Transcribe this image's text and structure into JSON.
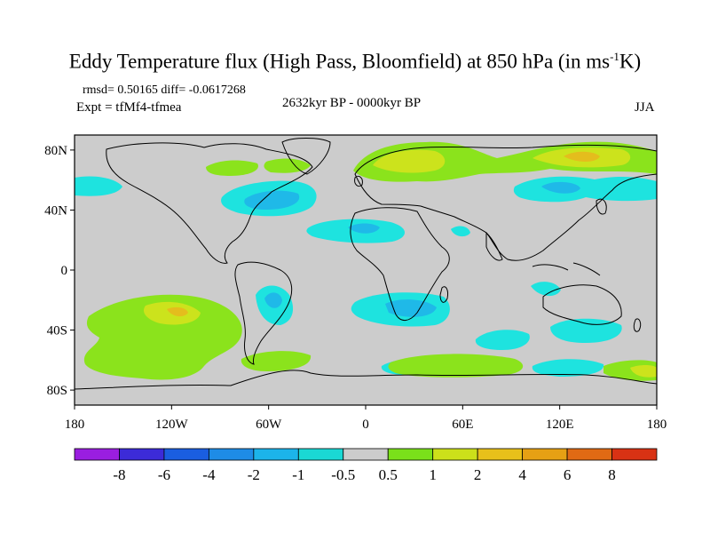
{
  "title": {
    "main": "Eddy Temperature flux (High Pass, Bloomfield) at 850 hPa (in ms",
    "sup": "-1",
    "end": "K)"
  },
  "header": {
    "stats": "rmsd= 0.50165 diff= -0.0617268",
    "experiment": "Expt = tfMf4-tfmea",
    "period": "2632kyr BP - 0000kyr BP",
    "season": "JJA"
  },
  "axes": {
    "lat_labels": [
      "80N",
      "40N",
      "0",
      "40S",
      "80S"
    ],
    "lat_values": [
      80,
      40,
      0,
      -40,
      -80
    ],
    "lon_labels": [
      "180",
      "120W",
      "60W",
      "0",
      "60E",
      "120E",
      "180"
    ],
    "lon_values": [
      -180,
      -120,
      -60,
      0,
      60,
      120,
      180
    ],
    "lat_range": [
      -90,
      90
    ],
    "lon_range": [
      -180,
      180
    ]
  },
  "colorbar": {
    "labels": [
      "-8",
      "-6",
      "-4",
      "-2",
      "-1",
      "-0.5",
      "0.5",
      "1",
      "2",
      "4",
      "6",
      "8"
    ],
    "colors": [
      "#9a1ee0",
      "#3c2bd8",
      "#1a5ee0",
      "#1e8ce6",
      "#1cb4ea",
      "#1ad8d4",
      "#cccccc",
      "#7ae01a",
      "#cce01a",
      "#e8c01a",
      "#e6a014",
      "#e06a14",
      "#d83214"
    ]
  },
  "colors": {
    "ocean_gray": "#cccccc",
    "pos_1": "#8be31c",
    "pos_2": "#cce31c",
    "pos_4": "#e4bd1d",
    "neg_1": "#1ee3df",
    "neg_2": "#1fb9e8"
  }
}
